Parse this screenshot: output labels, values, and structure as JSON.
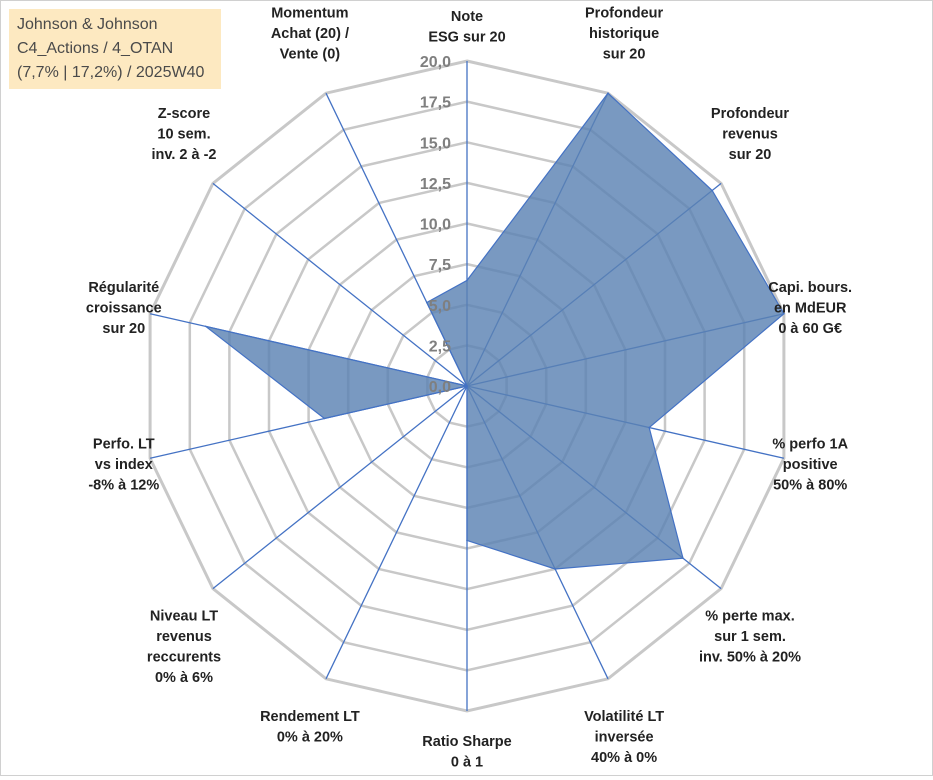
{
  "title_box": {
    "line1": "Johnson & Johnson",
    "line2": "C4_Actions / 4_OTAN",
    "line3": "(7,7% | 17,2%) / 2025W40"
  },
  "colors": {
    "fill": "#5b82b3",
    "stroke": "#4472c4",
    "grid": "#c8c8c8",
    "title_bg": "#fde9c1"
  },
  "chart_data": {
    "type": "radar",
    "ylim": [
      0,
      20
    ],
    "tick_values": [
      0,
      2.5,
      5,
      7.5,
      10,
      12.5,
      15,
      17.5,
      20
    ],
    "tick_labels": [
      "0,0",
      "2,5",
      "5,0",
      "7,5",
      "10,0",
      "12,5",
      "15,0",
      "17,5",
      "20,0"
    ],
    "categories": [
      [
        "Note",
        "ESG sur 20"
      ],
      [
        "Profondeur",
        "historique",
        "sur 20"
      ],
      [
        "Profondeur",
        "revenus",
        "sur 20"
      ],
      [
        "Capi. bours.",
        "en MdEUR",
        "0 à 60 G€"
      ],
      [
        "% perfo 1A",
        "positive",
        "50% à 80%"
      ],
      [
        "% perte max.",
        "sur 1 sem.",
        "inv. 50% à 20%"
      ],
      [
        "Volatilité LT",
        "inversée",
        "40% à 0%"
      ],
      [
        "Ratio Sharpe",
        "0 à 1"
      ],
      [
        "Rendement LT",
        "0% à 20%"
      ],
      [
        "Niveau LT",
        "revenus",
        "reccurents",
        "0% à 6%"
      ],
      [
        "Perfo. LT",
        "vs index",
        "-8% à 12%"
      ],
      [
        "Régularité",
        "croissance",
        "sur 20"
      ],
      [
        "Z-score",
        "10 sem.",
        "inv. 2 à -2"
      ],
      [
        "Momentum",
        "Achat (20) /",
        "Vente (0)"
      ]
    ],
    "values": [
      6.5,
      20,
      19.3,
      20,
      11.5,
      17.0,
      12.5,
      9.5,
      0,
      0,
      9.0,
      16.5,
      0,
      5.7
    ]
  }
}
